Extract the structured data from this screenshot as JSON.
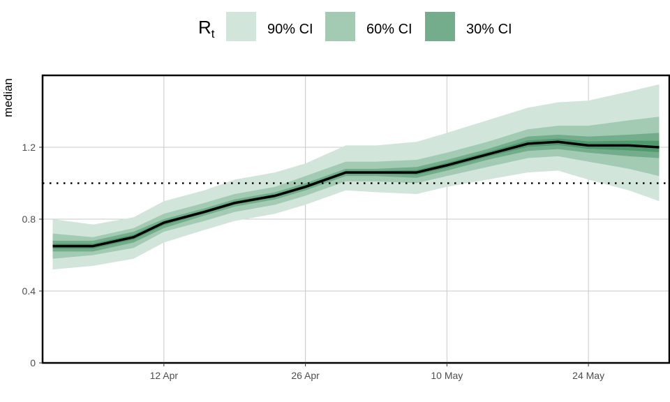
{
  "chart_data": {
    "type": "area",
    "legend": {
      "title": "R",
      "title_subscript": "t",
      "placement": "top",
      "entries": [
        {
          "label": "90% CI",
          "color": "#d1e5da"
        },
        {
          "label": "60% CI",
          "color": "#a3cbb3"
        },
        {
          "label": "30% CI",
          "color": "#74ad8b"
        }
      ]
    },
    "ylabel": "median",
    "xlabel": "",
    "x_ticks": [
      {
        "date": "2020-04-12",
        "label": "12 Apr"
      },
      {
        "date": "2020-04-26",
        "label": "26 Apr"
      },
      {
        "date": "2020-05-10",
        "label": "10 May"
      },
      {
        "date": "2020-05-24",
        "label": "24 May"
      }
    ],
    "y_ticks": [
      {
        "value": 0,
        "label": "0"
      },
      {
        "value": 0.4,
        "label": "0.4"
      },
      {
        "value": 0.8,
        "label": "0.8"
      },
      {
        "value": 1.2,
        "label": "1.2"
      }
    ],
    "xlim": [
      "2020-03-31",
      "2020-06-01"
    ],
    "ylim": [
      0,
      1.6
    ],
    "grid": true,
    "reference_line": {
      "y": 1.0,
      "style": "dotted"
    },
    "band_colors": {
      "ci90": "#d1e5da",
      "ci60": "#a3cbb3",
      "ci30": "#74ad8b",
      "inner": "#4f9a6c"
    },
    "series": {
      "dates": [
        "2020-04-01",
        "2020-04-05",
        "2020-04-09",
        "2020-04-12",
        "2020-04-16",
        "2020-04-19",
        "2020-04-23",
        "2020-04-26",
        "2020-04-30",
        "2020-05-03",
        "2020-05-07",
        "2020-05-10",
        "2020-05-14",
        "2020-05-18",
        "2020-05-21",
        "2020-05-24",
        "2020-05-28",
        "2020-05-31"
      ],
      "median": [
        0.65,
        0.65,
        0.7,
        0.78,
        0.84,
        0.89,
        0.93,
        0.98,
        1.06,
        1.06,
        1.06,
        1.1,
        1.16,
        1.22,
        1.23,
        1.21,
        1.21,
        1.2
      ],
      "ci90_low": [
        0.52,
        0.54,
        0.58,
        0.67,
        0.74,
        0.79,
        0.83,
        0.88,
        0.96,
        0.95,
        0.94,
        0.98,
        1.02,
        1.06,
        1.07,
        1.02,
        0.96,
        0.9
      ],
      "ci90_high": [
        0.8,
        0.77,
        0.81,
        0.9,
        0.96,
        1.02,
        1.06,
        1.11,
        1.21,
        1.21,
        1.23,
        1.28,
        1.35,
        1.42,
        1.45,
        1.46,
        1.51,
        1.55
      ],
      "ci60_low": [
        0.58,
        0.6,
        0.64,
        0.73,
        0.79,
        0.84,
        0.88,
        0.93,
        1.01,
        1.01,
        1.0,
        1.04,
        1.09,
        1.14,
        1.15,
        1.12,
        1.08,
        1.04
      ],
      "ci60_high": [
        0.72,
        0.7,
        0.75,
        0.83,
        0.89,
        0.94,
        0.98,
        1.04,
        1.12,
        1.12,
        1.13,
        1.17,
        1.23,
        1.3,
        1.32,
        1.32,
        1.35,
        1.37
      ],
      "ci30_low": [
        0.62,
        0.62,
        0.67,
        0.75,
        0.82,
        0.87,
        0.91,
        0.96,
        1.04,
        1.04,
        1.03,
        1.07,
        1.13,
        1.18,
        1.19,
        1.17,
        1.15,
        1.14
      ],
      "ci30_high": [
        0.68,
        0.68,
        0.73,
        0.8,
        0.86,
        0.91,
        0.95,
        1.0,
        1.08,
        1.08,
        1.09,
        1.13,
        1.19,
        1.26,
        1.27,
        1.26,
        1.27,
        1.28
      ]
    }
  }
}
